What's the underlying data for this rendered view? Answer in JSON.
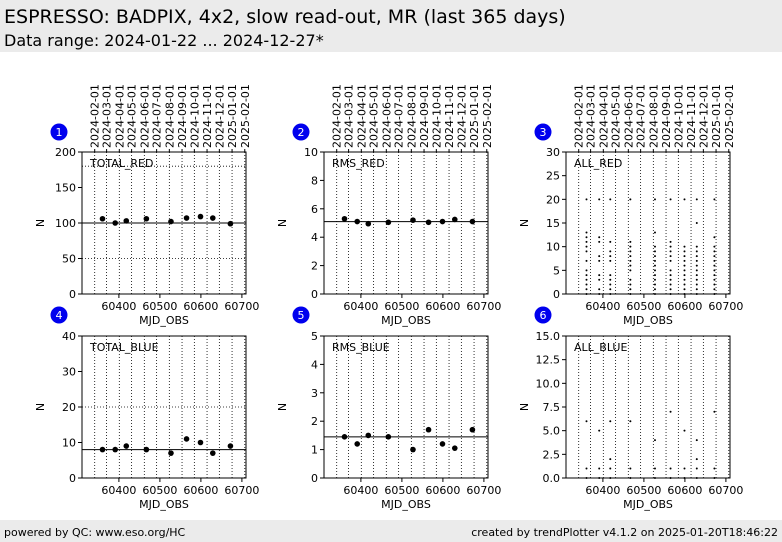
{
  "header": {
    "title": "ESPRESSO: BADPIX, 4x2, slow read-out, MR (last 365 days)",
    "subtitle": "Data range: 2024-01-22 ... 2024-12-27*"
  },
  "footer": {
    "left": "powered by QC: www.eso.org/HC",
    "right": "created by trendPlotter v4.1.2 on 2025-01-20T18:46:22"
  },
  "colors": {
    "badge": "#0000ee",
    "grid": "#000000",
    "reference_line": "#000000",
    "points": "#000000",
    "header_bg": "#ebebeb"
  },
  "chart_data": [
    {
      "id": 1,
      "badge": "1",
      "type": "scatter",
      "label": "TOTAL_RED",
      "xlabel": "MJD_OBS",
      "ylabel": "N",
      "xlim": [
        60310,
        60710
      ],
      "ylim": [
        0,
        200
      ],
      "yticks": [
        0,
        50,
        100,
        150,
        200
      ],
      "ytick_labels": [
        "0",
        "50",
        "100",
        "150",
        "200"
      ],
      "xticks": [
        60400,
        60500,
        60600,
        60700
      ],
      "xtick_labels": [
        "60400",
        "60500",
        "60600",
        "60700"
      ],
      "top_dates": [
        "2024-02-01",
        "2024-03-01",
        "2024-04-01",
        "2024-05-01",
        "2024-06-01",
        "2024-07-01",
        "2024-08-01",
        "2024-09-01",
        "2024-10-01",
        "2024-11-01",
        "2024-12-01",
        "2025-01-01",
        "2025-02-01"
      ],
      "hlines": [
        100
      ],
      "dotted_hlines": [
        50,
        180
      ],
      "point_style": "dot",
      "x": [
        60360,
        60391,
        60418,
        60467,
        60527,
        60565,
        60599,
        60629,
        60672
      ],
      "y": [
        106,
        100,
        103,
        106,
        102,
        107,
        109,
        107,
        99
      ]
    },
    {
      "id": 2,
      "badge": "2",
      "type": "scatter",
      "label": "RMS_RED",
      "xlabel": "MJD_OBS",
      "ylabel": "N",
      "xlim": [
        60310,
        60710
      ],
      "ylim": [
        0,
        10
      ],
      "yticks": [
        0,
        2,
        4,
        6,
        8,
        10
      ],
      "ytick_labels": [
        "0",
        "2",
        "4",
        "6",
        "8",
        "10"
      ],
      "xticks": [
        60400,
        60500,
        60600,
        60700
      ],
      "xtick_labels": [
        "60400",
        "60500",
        "60600",
        "60700"
      ],
      "top_dates": [
        "2024-02-01",
        "2024-03-01",
        "2024-04-01",
        "2024-05-01",
        "2024-06-01",
        "2024-07-01",
        "2024-08-01",
        "2024-09-01",
        "2024-10-01",
        "2024-11-01",
        "2024-12-01",
        "2025-01-01",
        "2025-02-01"
      ],
      "hlines": [
        5.1
      ],
      "dotted_hlines": [],
      "point_style": "dot",
      "x": [
        60360,
        60391,
        60418,
        60467,
        60527,
        60565,
        60599,
        60629,
        60672
      ],
      "y": [
        5.3,
        5.1,
        4.95,
        5.05,
        5.2,
        5.05,
        5.1,
        5.25,
        5.1
      ]
    },
    {
      "id": 3,
      "badge": "3",
      "type": "scatter",
      "label": "ALL_RED",
      "xlabel": "MJD_OBS",
      "ylabel": "N",
      "xlim": [
        60310,
        60710
      ],
      "ylim": [
        0,
        30
      ],
      "yticks": [
        0,
        5,
        10,
        15,
        20,
        25,
        30
      ],
      "ytick_labels": [
        "0",
        "5",
        "10",
        "15",
        "20",
        "25",
        "30"
      ],
      "xticks": [
        60400,
        60500,
        60600,
        60700
      ],
      "xtick_labels": [
        "60400",
        "60500",
        "60600",
        "60700"
      ],
      "top_dates": [
        "2024-02-01",
        "2024-03-01",
        "2024-04-01",
        "2024-05-01",
        "2024-06-01",
        "2024-07-01",
        "2024-08-01",
        "2024-09-01",
        "2024-10-01",
        "2024-11-01",
        "2024-12-01",
        "2025-01-01",
        "2025-02-01"
      ],
      "hlines": [],
      "dotted_hlines": [],
      "point_style": "tiny",
      "columns": [
        {
          "x": 60360,
          "y": [
            0,
            1,
            2,
            3,
            4,
            5,
            7,
            9,
            10,
            11,
            12,
            13,
            20
          ]
        },
        {
          "x": 60391,
          "y": [
            0,
            1,
            3,
            4,
            7,
            8,
            11,
            12,
            20
          ]
        },
        {
          "x": 60418,
          "y": [
            0,
            1,
            2,
            3,
            4,
            7,
            8,
            9,
            11,
            20
          ]
        },
        {
          "x": 60467,
          "y": [
            0,
            1,
            2,
            3,
            5,
            6,
            7,
            8,
            9,
            10,
            11,
            20
          ]
        },
        {
          "x": 60527,
          "y": [
            0,
            1,
            2,
            3,
            4,
            5,
            6,
            7,
            8,
            9,
            10,
            13,
            20
          ]
        },
        {
          "x": 60565,
          "y": [
            0,
            1,
            2,
            3,
            4,
            5,
            7,
            8,
            9,
            10,
            11,
            20
          ]
        },
        {
          "x": 60599,
          "y": [
            0,
            1,
            2,
            3,
            4,
            5,
            6,
            7,
            8,
            9,
            10,
            20
          ]
        },
        {
          "x": 60629,
          "y": [
            0,
            1,
            2,
            3,
            4,
            5,
            6,
            7,
            8,
            9,
            10,
            15,
            20
          ]
        },
        {
          "x": 60672,
          "y": [
            0,
            1,
            2,
            3,
            4,
            5,
            6,
            7,
            8,
            9,
            10,
            12,
            20
          ]
        }
      ]
    },
    {
      "id": 4,
      "badge": "4",
      "type": "scatter",
      "label": "TOTAL_BLUE",
      "xlabel": "MJD_OBS",
      "ylabel": "N",
      "xlim": [
        60310,
        60710
      ],
      "ylim": [
        0,
        40
      ],
      "yticks": [
        0,
        10,
        20,
        30,
        40
      ],
      "ytick_labels": [
        "0",
        "10",
        "20",
        "30",
        "40"
      ],
      "xticks": [
        60400,
        60500,
        60600,
        60700
      ],
      "xtick_labels": [
        "60400",
        "60500",
        "60600",
        "60700"
      ],
      "top_dates": [],
      "hlines": [
        8
      ],
      "dotted_hlines": [
        20
      ],
      "point_style": "dot",
      "x": [
        60360,
        60391,
        60418,
        60467,
        60527,
        60565,
        60599,
        60629,
        60672
      ],
      "y": [
        8,
        8,
        9,
        8,
        7,
        11,
        10,
        7,
        9
      ]
    },
    {
      "id": 5,
      "badge": "5",
      "type": "scatter",
      "label": "RMS_BLUE",
      "xlabel": "MJD_OBS",
      "ylabel": "N",
      "xlim": [
        60310,
        60710
      ],
      "ylim": [
        0,
        5
      ],
      "yticks": [
        0,
        1,
        2,
        3,
        4,
        5
      ],
      "ytick_labels": [
        "0",
        "1",
        "2",
        "3",
        "4",
        "5"
      ],
      "xticks": [
        60400,
        60500,
        60600,
        60700
      ],
      "xtick_labels": [
        "60400",
        "60500",
        "60600",
        "60700"
      ],
      "top_dates": [],
      "hlines": [
        1.45
      ],
      "dotted_hlines": [],
      "point_style": "dot",
      "x": [
        60360,
        60391,
        60418,
        60467,
        60527,
        60565,
        60599,
        60629,
        60672
      ],
      "y": [
        1.45,
        1.2,
        1.5,
        1.45,
        1.0,
        1.7,
        1.2,
        1.05,
        1.7
      ]
    },
    {
      "id": 6,
      "badge": "6",
      "type": "scatter",
      "label": "ALL_BLUE",
      "xlabel": "MJD_OBS",
      "ylabel": "N",
      "xlim": [
        60310,
        60710
      ],
      "ylim": [
        0,
        15
      ],
      "yticks": [
        0,
        2.5,
        5,
        7.5,
        10,
        12.5,
        15
      ],
      "ytick_labels": [
        "0.0",
        "2.5",
        "5.0",
        "7.5",
        "10.0",
        "12.5",
        "15.0"
      ],
      "xticks": [
        60400,
        60500,
        60600,
        60700
      ],
      "xtick_labels": [
        "60400",
        "60500",
        "60600",
        "60700"
      ],
      "top_dates": [],
      "hlines": [],
      "dotted_hlines": [],
      "point_style": "tiny",
      "columns": [
        {
          "x": 60360,
          "y": [
            0,
            1,
            6
          ]
        },
        {
          "x": 60391,
          "y": [
            0,
            1,
            5
          ]
        },
        {
          "x": 60418,
          "y": [
            0,
            1,
            2,
            6
          ]
        },
        {
          "x": 60467,
          "y": [
            0,
            1,
            6
          ]
        },
        {
          "x": 60527,
          "y": [
            0,
            1,
            4
          ]
        },
        {
          "x": 60565,
          "y": [
            0,
            1,
            7
          ]
        },
        {
          "x": 60599,
          "y": [
            0,
            1,
            5
          ]
        },
        {
          "x": 60629,
          "y": [
            0,
            1,
            2,
            4
          ]
        },
        {
          "x": 60672,
          "y": [
            0,
            1,
            7
          ]
        }
      ]
    }
  ]
}
